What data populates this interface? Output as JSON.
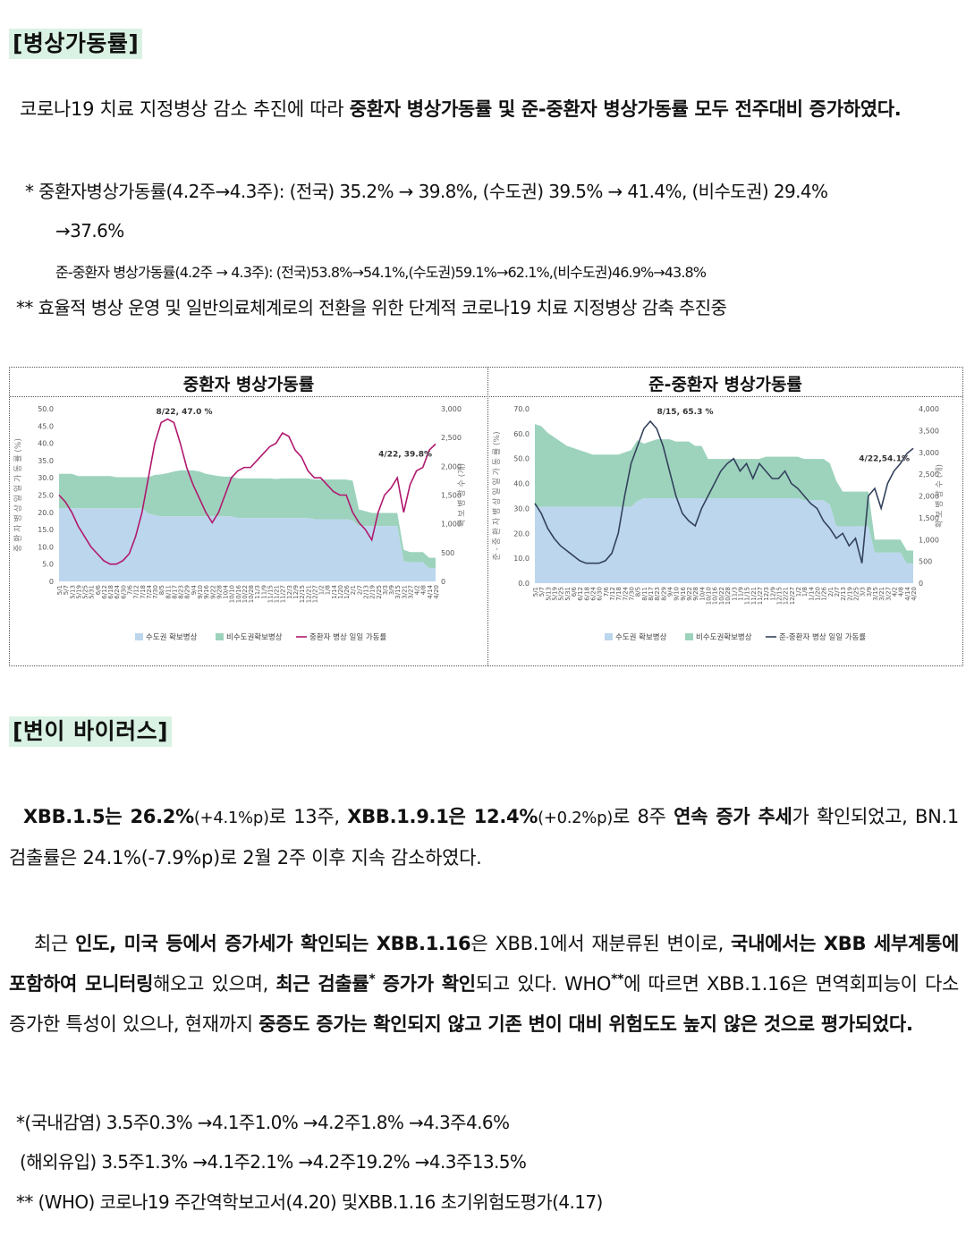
{
  "section1": {
    "title": "[병상가동률]",
    "para_plain": "코로나19 치료 지정병상 감소 추진에 따라 ",
    "para_bold": "중환자 병상가동률 및 준-중환자 병상가동률 모두 전주대비 증가하였다.",
    "note1_line1": "* 중환자병상가동률(4.2주→4.3주): (전국) 35.2% → 39.8%, (수도권) 39.5% → 41.4%, (비수도권) 29.4%",
    "note1_line2": "→37.6%",
    "note2": "준-중환자 병상가동률(4.2주 → 4.3주): (전국)53.8%→54.1%,(수도권)59.1%→62.1%,(비수도권)46.9%→43.8%",
    "note3": "** 효율적 병상 운영 및 일반의료체계로의 전환을 위한 단계적 코로나19 치료 지정병상 감축 추진중"
  },
  "charts": {
    "left_title": "중환자 병상가동률",
    "right_title": "준-중환자 병상가동률",
    "legend_seoul": "수도권 확보병상",
    "legend_nonseoul": "비수도권확보병상",
    "legend_left_line": "중환자 병상 일일 가동률",
    "legend_right_line": "준-중환자 병상 일일 가동률",
    "left_ylabel": "중 환 자 병 상 일 일 가 동 률 (%)",
    "left_y2label": "확 보 병 상 수 (개)",
    "right_ylabel": "준 - 중 환 자 병 상 일 일 가 동 률 (%)",
    "right_y2label": "확 보 병 상 수 (개)",
    "left_peak": "8/22, 47.0 %",
    "left_last": "4/22, 39.8%",
    "right_peak": "8/15, 65.3 %",
    "right_last": "4/22,54.1%",
    "colors": {
      "seoul": "#bcd6ee",
      "nonseoul": "#9dd3bd",
      "left_line": "#b0186e",
      "right_line": "#33415c"
    }
  },
  "chart_data": [
    {
      "type": "line",
      "title": "중환자 병상가동률",
      "ylabel": "중환자 병상 일일 가동률(%)",
      "y2label": "확보 병상 수(개)",
      "ylim": [
        0,
        50
      ],
      "y2lim": [
        0,
        3000
      ],
      "yticks": [
        "0",
        "5.0",
        "10.0",
        "15.0",
        "20.0",
        "25.0",
        "30.0",
        "35.0",
        "40.0",
        "45.0",
        "50.0"
      ],
      "y2ticks": [
        "0",
        "500",
        "1,000",
        "1,500",
        "2,000",
        "2,500",
        "3,000"
      ],
      "categories": [
        "5/1",
        "5/7",
        "5/13",
        "5/19",
        "5/25",
        "5/31",
        "6/6",
        "6/12",
        "6/18",
        "6/24",
        "6/30",
        "7/6",
        "7/12",
        "7/18",
        "7/24",
        "7/30",
        "8/5",
        "8/11",
        "8/17",
        "8/23",
        "8/29",
        "9/4",
        "9/10",
        "9/16",
        "9/22",
        "9/28",
        "10/4",
        "10/10",
        "10/16",
        "10/22",
        "10/28",
        "11/3",
        "11/9",
        "11/15",
        "11/21",
        "11/27",
        "12/3",
        "12/9",
        "12/15",
        "12/21",
        "12/27",
        "1/2",
        "1/8",
        "1/14",
        "1/20",
        "1/26",
        "2/1",
        "2/7",
        "2/13",
        "2/19",
        "2/25",
        "3/3",
        "3/9",
        "3/15",
        "3/21",
        "3/27",
        "4/2",
        "4/8",
        "4/14",
        "4/20"
      ],
      "series": [
        {
          "name": "수도권 확보병상",
          "type": "area",
          "values": [
            1270,
            1270,
            1270,
            1270,
            1270,
            1270,
            1270,
            1270,
            1270,
            1270,
            1270,
            1270,
            1270,
            1270,
            1180,
            1150,
            1130,
            1130,
            1130,
            1130,
            1130,
            1130,
            1130,
            1130,
            1130,
            1130,
            1130,
            1130,
            1100,
            1100,
            1100,
            1100,
            1100,
            1100,
            1100,
            1100,
            1100,
            1100,
            1100,
            1100,
            1080,
            1080,
            1080,
            1080,
            1080,
            1080,
            1060,
            960,
            960,
            960,
            960,
            960,
            960,
            960,
            350,
            330,
            330,
            330,
            230,
            230
          ]
        },
        {
          "name": "비수도권확보병상",
          "type": "area",
          "values": [
            600,
            600,
            600,
            560,
            560,
            560,
            560,
            560,
            560,
            540,
            540,
            540,
            540,
            540,
            630,
            700,
            730,
            750,
            780,
            800,
            800,
            800,
            780,
            740,
            720,
            700,
            690,
            690,
            690,
            690,
            690,
            690,
            690,
            690,
            680,
            690,
            690,
            690,
            690,
            690,
            690,
            690,
            690,
            690,
            690,
            690,
            690,
            290,
            260,
            230,
            230,
            230,
            230,
            230,
            200,
            180,
            180,
            180,
            180,
            180
          ]
        },
        {
          "name": "중환자 병상 일일 가동률",
          "values": [
            25,
            23,
            20,
            16,
            13,
            10,
            8,
            6,
            5,
            5,
            6,
            8,
            13,
            20,
            30,
            40,
            46,
            47,
            46,
            40,
            33,
            28,
            24,
            20,
            17,
            20,
            25,
            30,
            32,
            33,
            33,
            35,
            37,
            39,
            40,
            43,
            42,
            38,
            36,
            32,
            30,
            30,
            28,
            26,
            25,
            25,
            20,
            17,
            15,
            12,
            20,
            25,
            27,
            30,
            20,
            28,
            32,
            33,
            38,
            39.8
          ]
        }
      ],
      "annotations": [
        "8/22, 47.0 %",
        "4/22, 39.8%"
      ]
    },
    {
      "type": "line",
      "title": "준-중환자 병상가동률",
      "ylabel": "준-중환자 병상 일일 가동률(%)",
      "y2label": "확보 병상 수(개)",
      "ylim": [
        0,
        70
      ],
      "y2lim": [
        0,
        4000
      ],
      "yticks": [
        "0.0",
        "10.0",
        "20.0",
        "30.0",
        "40.0",
        "50.0",
        "60.0",
        "70.0"
      ],
      "y2ticks": [
        "0",
        "500",
        "1,000",
        "1,500",
        "2,000",
        "2,500",
        "3,000",
        "3,500",
        "4,000"
      ],
      "categories": [
        "5/1",
        "5/7",
        "5/13",
        "5/19",
        "5/25",
        "5/31",
        "6/6",
        "6/12",
        "6/18",
        "6/24",
        "6/30",
        "7/6",
        "7/12",
        "7/18",
        "7/24",
        "7/30",
        "8/5",
        "8/11",
        "8/17",
        "8/23",
        "8/29",
        "9/4",
        "9/10",
        "9/16",
        "9/22",
        "9/28",
        "10/4",
        "10/10",
        "10/16",
        "10/22",
        "10/28",
        "11/3",
        "11/9",
        "11/15",
        "11/21",
        "11/27",
        "12/3",
        "12/9",
        "12/15",
        "12/21",
        "12/27",
        "1/2",
        "1/8",
        "1/14",
        "1/20",
        "1/26",
        "2/1",
        "2/7",
        "2/13",
        "2/19",
        "2/25",
        "3/3",
        "3/9",
        "3/15",
        "3/21",
        "3/27",
        "4/2",
        "4/8",
        "4/14",
        "4/20"
      ],
      "series": [
        {
          "name": "수도권 확보병상",
          "type": "area",
          "values": [
            1750,
            1750,
            1750,
            1750,
            1750,
            1750,
            1750,
            1750,
            1750,
            1750,
            1750,
            1750,
            1750,
            1750,
            1750,
            1750,
            1880,
            1950,
            1950,
            1950,
            1950,
            1950,
            1950,
            1950,
            1950,
            1950,
            1950,
            1950,
            1950,
            1950,
            1950,
            1950,
            1950,
            1950,
            1950,
            1950,
            1950,
            1950,
            1950,
            1950,
            1950,
            1950,
            1900,
            1900,
            1900,
            1900,
            1800,
            1300,
            1300,
            1300,
            1300,
            1300,
            1300,
            700,
            700,
            700,
            700,
            700,
            450,
            450
          ]
        },
        {
          "name": "비수도권확보병상",
          "type": "area",
          "values": [
            1900,
            1850,
            1700,
            1600,
            1500,
            1400,
            1350,
            1300,
            1250,
            1200,
            1200,
            1200,
            1200,
            1200,
            1250,
            1300,
            1400,
            1250,
            1300,
            1350,
            1350,
            1350,
            1300,
            1300,
            1300,
            1200,
            1200,
            900,
            900,
            900,
            900,
            900,
            900,
            900,
            900,
            900,
            950,
            950,
            950,
            950,
            950,
            950,
            950,
            950,
            950,
            950,
            950,
            1050,
            800,
            800,
            800,
            800,
            800,
            300,
            300,
            300,
            300,
            300,
            300,
            300
          ]
        },
        {
          "name": "준-중환자 병상 일일 가동률",
          "values": [
            32,
            28,
            22,
            18,
            15,
            13,
            11,
            9,
            8,
            8,
            8,
            9,
            12,
            20,
            35,
            48,
            55,
            62,
            65,
            62,
            55,
            45,
            35,
            28,
            25,
            23,
            30,
            35,
            40,
            45,
            48,
            50,
            45,
            48,
            42,
            48,
            45,
            42,
            42,
            45,
            40,
            38,
            35,
            32,
            30,
            25,
            22,
            18,
            20,
            15,
            18,
            8,
            35,
            38,
            30,
            40,
            45,
            48,
            52,
            54.1
          ]
        }
      ],
      "annotations": [
        "8/15, 65.3 %",
        "4/22,54.1%"
      ]
    }
  ],
  "section2": {
    "title": "[변이 바이러스]",
    "p1": {
      "b1": "XBB.1.5는 ",
      "b2": "26.2%",
      "s1": "(+4.1%p)",
      "t1": "로 13주, ",
      "b3": "XBB.1.9.1은 ",
      "b4": "12.4%",
      "s2": "(+0.2%p)",
      "t2": "로 8주 ",
      "b5": "연속 증가 추세",
      "t3": "가 확인되었고, BN.1 검출률은 24.1%(-7.9%p)로 2월 2주 이후 지속 감소하였다."
    },
    "p2": {
      "t1": "최근 ",
      "b1": "인도, 미국 등에서 증가세가 확인되는 XBB.1.16",
      "t2": "은 XBB.1에서 재분류된 변이로, ",
      "b2": "국내에서는 XBB 세부계통에 포함하여 모니터링",
      "t3": "해오고 있으며, ",
      "b3": "최근 검출률",
      "sup1": "*",
      "t4": " ",
      "b4": "증가가 확인",
      "t5": "되고 있다. WHO",
      "sup2": "**",
      "t6": "에 따르면 XBB.1.16은 면역회피능이 다소 증가한 특성이 있으나, 현재까지 ",
      "b5": "중증도 증가는 확인되지 않고 기존 변이 대비 위험도도 높지 않은 것으로 평가되었다."
    },
    "note1": "*(국내감염) 3.5주0.3% →4.1주1.0% →4.2주1.8% →4.3주4.6%",
    "note2": "(해외유입) 3.5주1.3% →4.1주2.1% →4.2주19.2% →4.3주13.5%",
    "note3": "** (WHO) 코로나19 주간역학보고서(4.20) 및XBB.1.16 초기위험도평가(4.17)"
  }
}
